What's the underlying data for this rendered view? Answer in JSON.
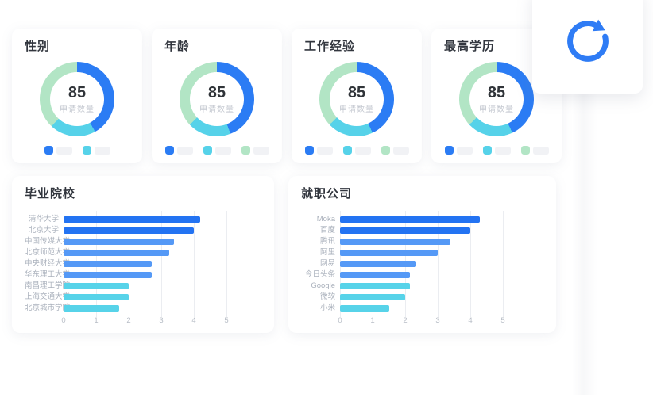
{
  "refresh_button": {
    "icon_name": "refresh-icon",
    "color": "#2f7cf5"
  },
  "palette": {
    "deep_blue": "#2373f2",
    "medium_blue": "#5599f6",
    "cyan": "#57d3e9",
    "green": "#b2e5c5",
    "legend_placeholder": "#f1f2f5"
  },
  "chart_data": [
    {
      "type": "donut",
      "title": "性别",
      "center_value": "85",
      "center_label": "申请数量",
      "segments": [
        {
          "color": "#2b7cf4",
          "pct": 42
        },
        {
          "color": "#56d2e9",
          "pct": 20
        },
        {
          "color": "#b2e5c5",
          "pct": 38
        }
      ],
      "legend_swatches": [
        "#2b7cf4",
        "#56d2e9"
      ]
    },
    {
      "type": "donut",
      "title": "年龄",
      "center_value": "85",
      "center_label": "申请数量",
      "segments": [
        {
          "color": "#2b7cf4",
          "pct": 44
        },
        {
          "color": "#56d2e9",
          "pct": 19
        },
        {
          "color": "#b2e5c5",
          "pct": 37
        }
      ],
      "legend_swatches": [
        "#2b7cf4",
        "#56d2e9",
        "#b2e5c5"
      ]
    },
    {
      "type": "donut",
      "title": "工作经验",
      "center_value": "85",
      "center_label": "申请数量",
      "segments": [
        {
          "color": "#2b7cf4",
          "pct": 43
        },
        {
          "color": "#56d2e9",
          "pct": 20
        },
        {
          "color": "#b2e5c5",
          "pct": 37
        }
      ],
      "legend_swatches": [
        "#2b7cf4",
        "#56d2e9",
        "#b2e5c5"
      ]
    },
    {
      "type": "donut",
      "title": "最高学历",
      "center_value": "85",
      "center_label": "申请数量",
      "segments": [
        {
          "color": "#2b7cf4",
          "pct": 43
        },
        {
          "color": "#56d2e9",
          "pct": 20
        },
        {
          "color": "#b2e5c5",
          "pct": 37
        }
      ],
      "legend_swatches": [
        "#2b7cf4",
        "#56d2e9",
        "#b2e5c5"
      ]
    },
    {
      "type": "bar",
      "orientation": "horizontal",
      "title": "毕业院校",
      "xlim": [
        0,
        5
      ],
      "x_ticks": [
        "0",
        "1",
        "2",
        "3",
        "4",
        "5"
      ],
      "grid": true,
      "bars": [
        {
          "label": "清华大学",
          "value": 4.2,
          "color": "#2373f2"
        },
        {
          "label": "北京大学",
          "value": 4.0,
          "color": "#2373f2"
        },
        {
          "label": "中国传媒大学",
          "value": 3.4,
          "color": "#5599f6"
        },
        {
          "label": "北京师范大学",
          "value": 3.25,
          "color": "#5599f6"
        },
        {
          "label": "中央财经大学",
          "value": 2.7,
          "color": "#5599f6"
        },
        {
          "label": "华东理工大学",
          "value": 2.7,
          "color": "#5599f6"
        },
        {
          "label": "南昌理工学院",
          "value": 2.0,
          "color": "#57d3e9"
        },
        {
          "label": "上海交通大学",
          "value": 2.0,
          "color": "#57d3e9"
        },
        {
          "label": "北京城市学院",
          "value": 1.7,
          "color": "#57d3e9"
        }
      ]
    },
    {
      "type": "bar",
      "orientation": "horizontal",
      "title": "就职公司",
      "xlim": [
        0,
        5
      ],
      "x_ticks": [
        "0",
        "1",
        "2",
        "3",
        "4",
        "5"
      ],
      "grid": true,
      "bars": [
        {
          "label": "Moka",
          "value": 4.3,
          "color": "#2373f2"
        },
        {
          "label": "百度",
          "value": 4.0,
          "color": "#2373f2"
        },
        {
          "label": "腾讯",
          "value": 3.4,
          "color": "#5599f6"
        },
        {
          "label": "阿里",
          "value": 3.0,
          "color": "#5599f6"
        },
        {
          "label": "网易",
          "value": 2.35,
          "color": "#5599f6"
        },
        {
          "label": "今日头条",
          "value": 2.15,
          "color": "#5599f6"
        },
        {
          "label": "Google",
          "value": 2.15,
          "color": "#57d3e9"
        },
        {
          "label": "微软",
          "value": 2.0,
          "color": "#57d3e9"
        },
        {
          "label": "小米",
          "value": 1.5,
          "color": "#57d3e9"
        }
      ]
    }
  ]
}
